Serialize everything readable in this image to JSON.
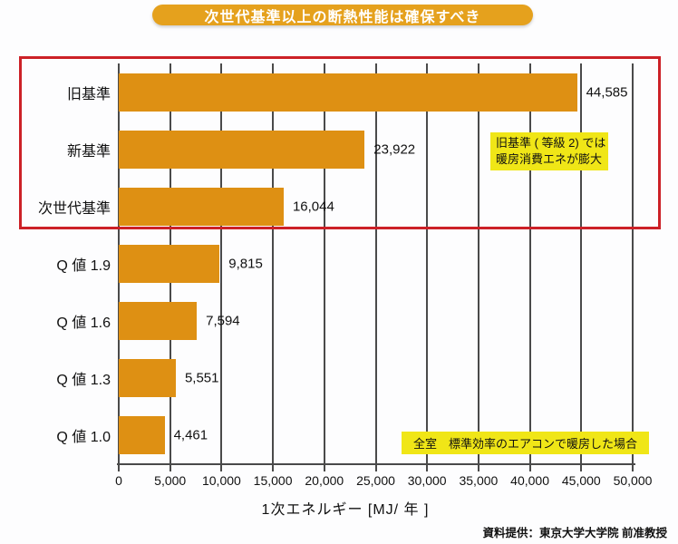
{
  "title_badge": {
    "label": "次世代基準以上の断熱性能は確保すべき",
    "bg_color": "#e5a11d",
    "text_color": "#ffffff"
  },
  "chart_data": {
    "type": "bar",
    "orientation": "horizontal",
    "title": "次世代基準以上の断熱性能は確保すべき",
    "categories": [
      "旧基準",
      "新基準",
      "次世代基準",
      "Q 値 1.9",
      "Q 値 1.6",
      "Q 値 1.3",
      "Q 値 1.0"
    ],
    "values": [
      44585,
      23922,
      16044,
      9815,
      7594,
      5551,
      4461
    ],
    "value_labels": [
      "44,585",
      "23,922",
      "16,044",
      "9,815",
      "7,594",
      "5,551",
      "4,461"
    ],
    "xlabel": "1次エネルギー [MJ/ 年 ]",
    "ylabel": "",
    "xlim": [
      0,
      50000
    ],
    "xticks": [
      0,
      5000,
      10000,
      15000,
      20000,
      25000,
      30000,
      35000,
      40000,
      45000,
      50000
    ],
    "xtick_labels": [
      "0",
      "5,000",
      "10,000",
      "15,000",
      "20,000",
      "25,000",
      "30,000",
      "35,000",
      "40,000",
      "45,000",
      "50,000"
    ],
    "grid": "vertical-gridlines-on",
    "legend": "none",
    "bar_color": "#de9013",
    "gridline_color": "#4a4a4a",
    "highlighted_categories": [
      "旧基準",
      "新基準",
      "次世代基準"
    ],
    "highlight_border_color": "#cc2127"
  },
  "annotation_box": {
    "line1": "旧基準 ( 等級 2) では",
    "line2": "暖房消費エネが膨大",
    "bg_color": "#f0e617"
  },
  "condition_box": {
    "label": "全室　標準効率のエアコンで暖房した場合",
    "bg_color": "#f0e617"
  },
  "source_note": {
    "label": "資料提供：東京大学大学院 前准教授"
  }
}
